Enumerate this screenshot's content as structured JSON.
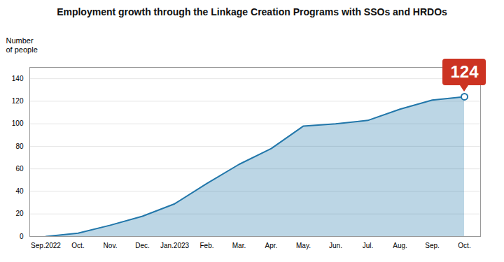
{
  "chart_data": {
    "type": "area",
    "title": "Employment growth through the Linkage Creation Programs with SSOs and HRDOs",
    "ylabel": "Number\nof people",
    "categories": [
      "Sep.2022",
      "Oct.",
      "Nov.",
      "Dec.",
      "Jan.2023",
      "Feb.",
      "Mar.",
      "Apr.",
      "May.",
      "Jun.",
      "Jul.",
      "Aug.",
      "Sep.",
      "Oct."
    ],
    "values": [
      0,
      3,
      10,
      18,
      29,
      47,
      64,
      78,
      98,
      100,
      103,
      113,
      121,
      124
    ],
    "color": "#2277aa",
    "ylim": [
      0,
      150
    ],
    "yticks": [
      0,
      20,
      40,
      60,
      80,
      100,
      120,
      140
    ],
    "grid": true,
    "annotations": [
      {
        "text": "124",
        "color": "#cc3322"
      }
    ]
  }
}
